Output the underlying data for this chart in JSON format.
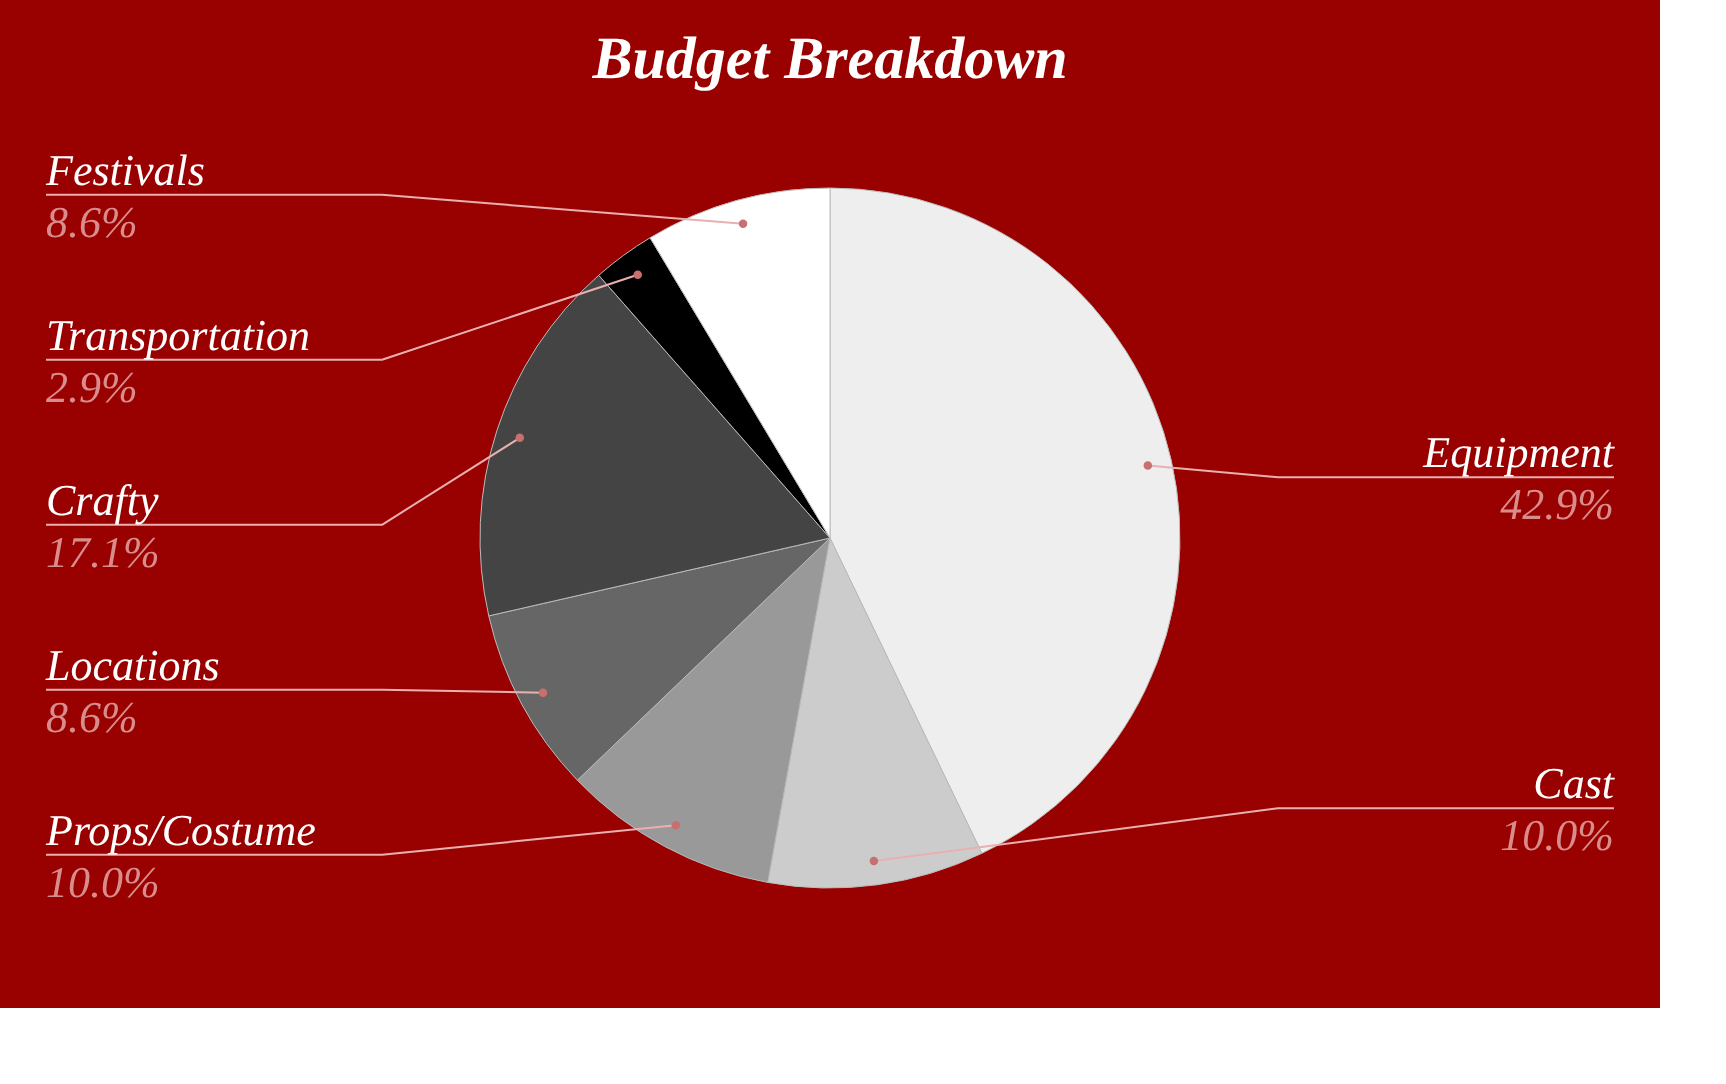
{
  "chart_data": {
    "type": "pie",
    "title": "Budget Breakdown",
    "categories": [
      "Equipment",
      "Cast",
      "Props/Costume",
      "Locations",
      "Crafty",
      "Transportation",
      "Festivals"
    ],
    "values": [
      42.9,
      10.0,
      10.0,
      8.6,
      17.1,
      2.9,
      8.6
    ],
    "value_labels": [
      "42.9%",
      "10.0%",
      "10.0%",
      "8.6%",
      "17.1%",
      "2.9%",
      "8.6%"
    ],
    "colors": [
      "#eeeeee",
      "#cccccc",
      "#999999",
      "#666666",
      "#444444",
      "#000000",
      "#ffffff"
    ],
    "legend": false
  }
}
